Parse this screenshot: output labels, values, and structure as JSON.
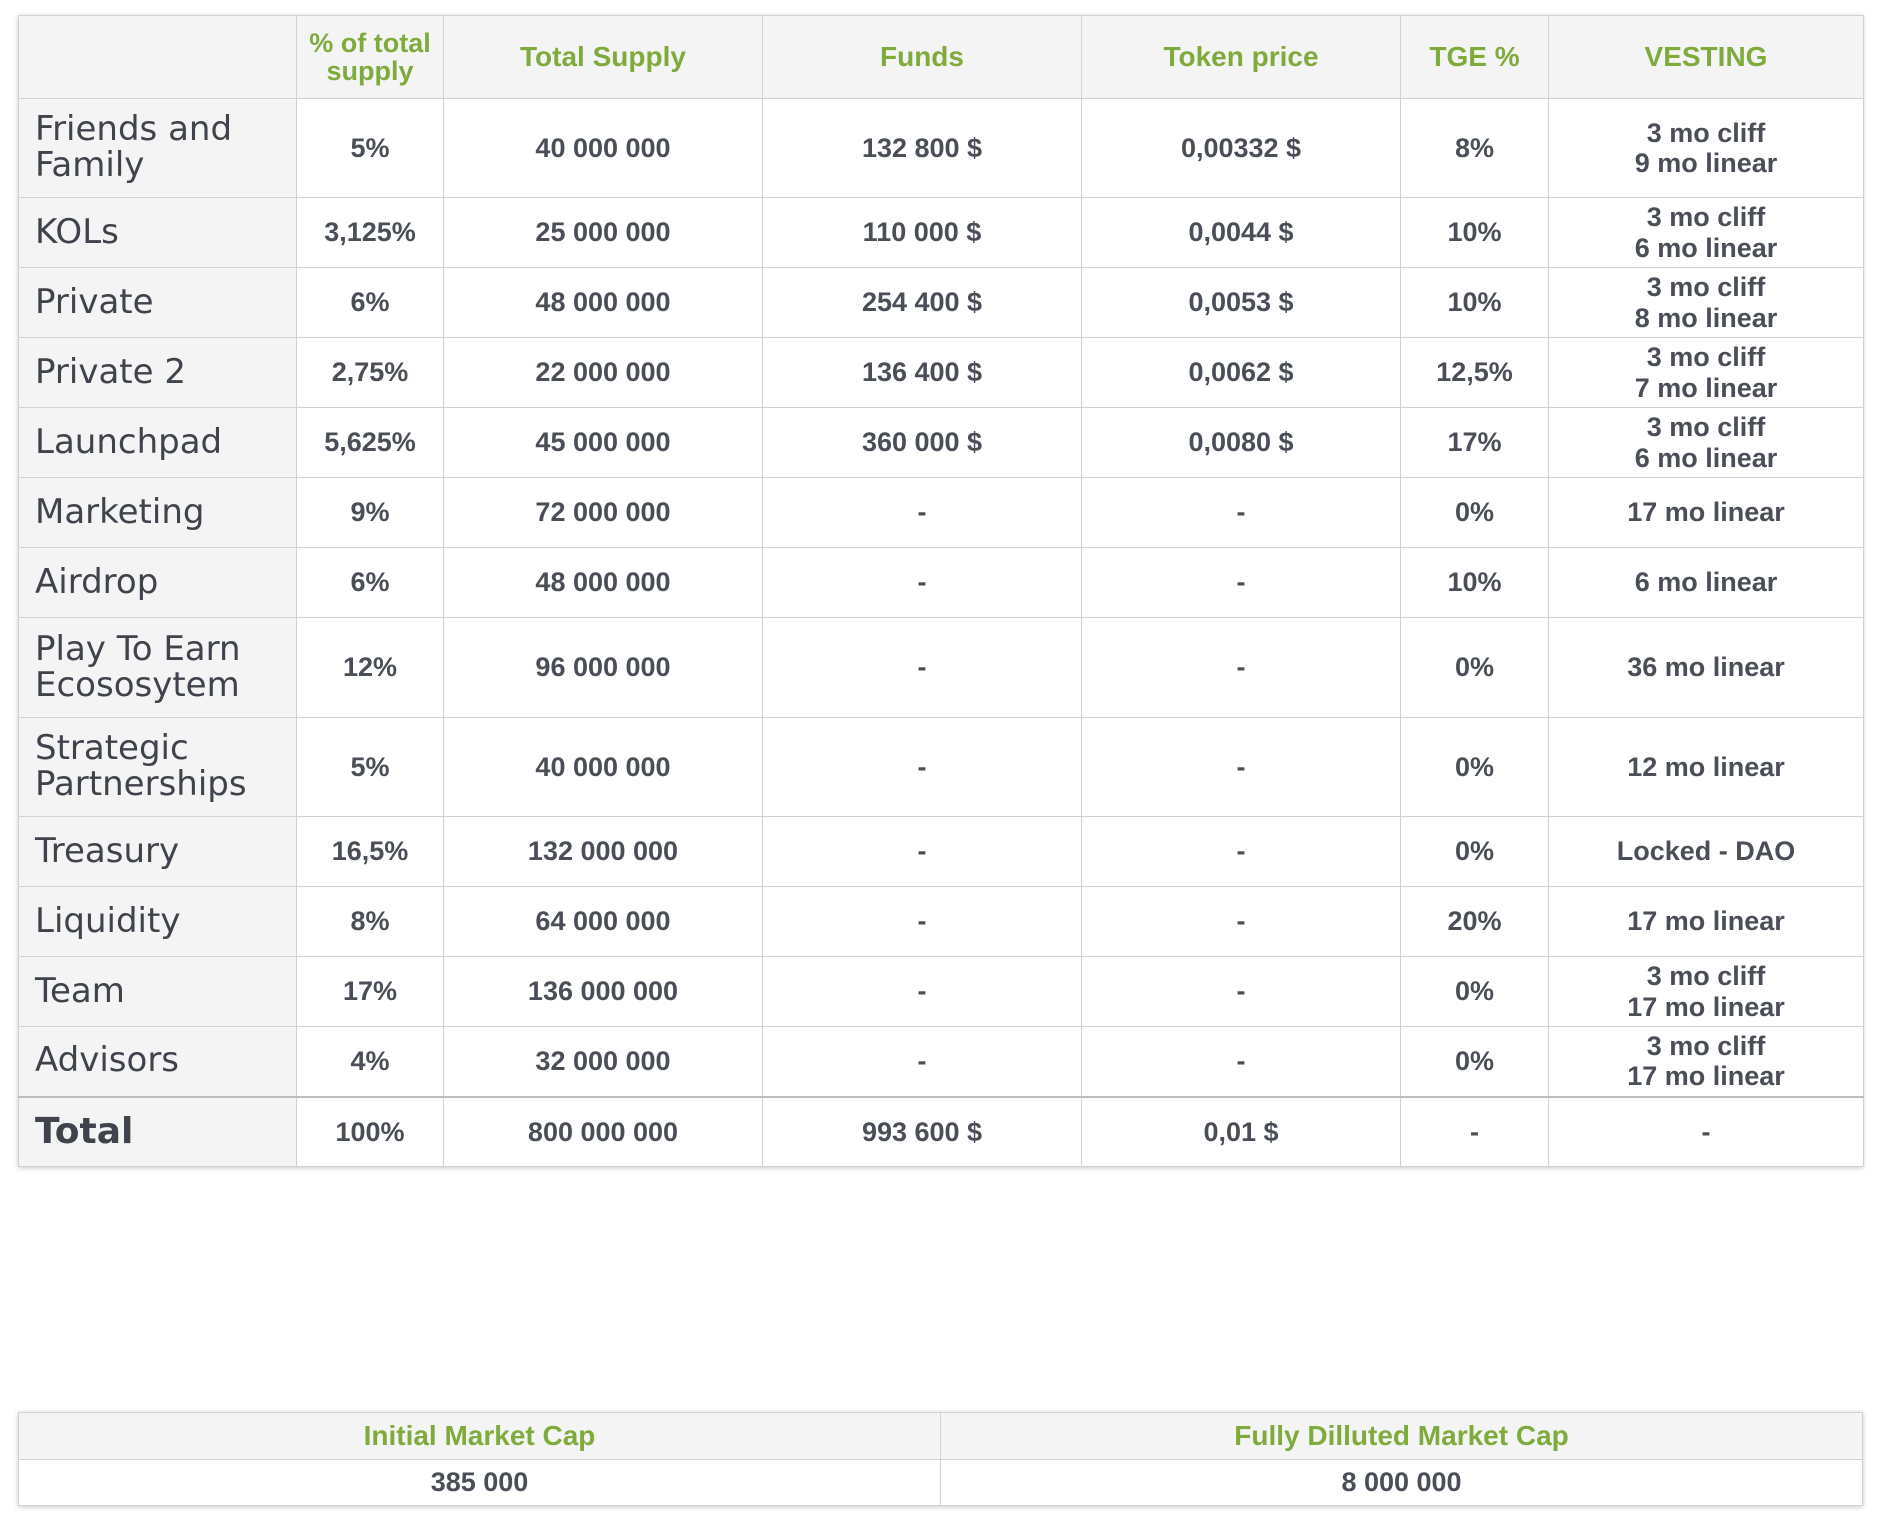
{
  "headers": {
    "category": "",
    "pct": "% of total supply",
    "supply": "Total Supply",
    "funds": "Funds",
    "price": "Token price",
    "tge": "TGE %",
    "vesting": "VESTING"
  },
  "rows": [
    {
      "name": "Friends and Family",
      "pct": "5%",
      "supply": "40 000 000",
      "funds": "132 800 $",
      "price": "0,00332 $",
      "tge": "8%",
      "vesting": [
        "3 mo cliff",
        "9 mo linear"
      ]
    },
    {
      "name": "KOLs",
      "pct": "3,125%",
      "supply": "25 000 000",
      "funds": "110 000 $",
      "price": "0,0044 $",
      "tge": "10%",
      "vesting": [
        "3 mo cliff",
        "6 mo linear"
      ]
    },
    {
      "name": "Private",
      "pct": "6%",
      "supply": "48 000 000",
      "funds": "254 400 $",
      "price": "0,0053 $",
      "tge": "10%",
      "vesting": [
        "3 mo cliff",
        "8 mo linear"
      ]
    },
    {
      "name": "Private 2",
      "pct": "2,75%",
      "supply": "22 000 000",
      "funds": "136 400 $",
      "price": "0,0062 $",
      "tge": "12,5%",
      "vesting": [
        "3 mo cliff",
        "7 mo linear"
      ]
    },
    {
      "name": "Launchpad",
      "pct": "5,625%",
      "supply": "45 000 000",
      "funds": "360 000 $",
      "price": "0,0080 $",
      "tge": "17%",
      "vesting": [
        "3 mo cliff",
        "6 mo linear"
      ]
    },
    {
      "name": "Marketing",
      "pct": "9%",
      "supply": "72 000 000",
      "funds": "-",
      "price": "-",
      "tge": "0%",
      "vesting": [
        "17 mo linear"
      ]
    },
    {
      "name": "Airdrop",
      "pct": "6%",
      "supply": "48 000 000",
      "funds": "-",
      "price": "-",
      "tge": "10%",
      "vesting": [
        "6 mo linear"
      ]
    },
    {
      "name": "Play To Earn Ecososytem",
      "pct": "12%",
      "supply": "96 000 000",
      "funds": "-",
      "price": "-",
      "tge": "0%",
      "vesting": [
        "36 mo linear"
      ]
    },
    {
      "name": "Strategic Partnerships",
      "pct": "5%",
      "supply": "40 000 000",
      "funds": "-",
      "price": "-",
      "tge": "0%",
      "vesting": [
        "12 mo linear"
      ]
    },
    {
      "name": "Treasury",
      "pct": "16,5%",
      "supply": "132 000 000",
      "funds": "-",
      "price": "-",
      "tge": "0%",
      "vesting": [
        "Locked - DAO"
      ]
    },
    {
      "name": "Liquidity",
      "pct": "8%",
      "supply": "64 000 000",
      "funds": "-",
      "price": "-",
      "tge": "20%",
      "vesting": [
        "17 mo linear"
      ]
    },
    {
      "name": "Team",
      "pct": "17%",
      "supply": "136 000 000",
      "funds": "-",
      "price": "-",
      "tge": "0%",
      "vesting": [
        "3 mo cliff",
        "17 mo linear"
      ]
    },
    {
      "name": "Advisors",
      "pct": "4%",
      "supply": "32 000 000",
      "funds": "-",
      "price": "-",
      "tge": "0%",
      "vesting": [
        "3 mo cliff",
        "17 mo linear"
      ]
    }
  ],
  "total": {
    "name": "Total",
    "pct": "100%",
    "supply": "800 000 000",
    "funds": "993 600 $",
    "price": "0,01 $",
    "tge": "-",
    "vesting": "-"
  },
  "market_cap": {
    "initial_label": "Initial Market Cap",
    "initial_value": "385 000",
    "fdv_label": "Fully Dilluted Market Cap",
    "fdv_value": "8 000 000"
  },
  "colors": {
    "header_text": "#7faa3c",
    "header_bg": "#f4f4f4",
    "body_text": "#4a4e57",
    "border": "#d2d2d2"
  }
}
